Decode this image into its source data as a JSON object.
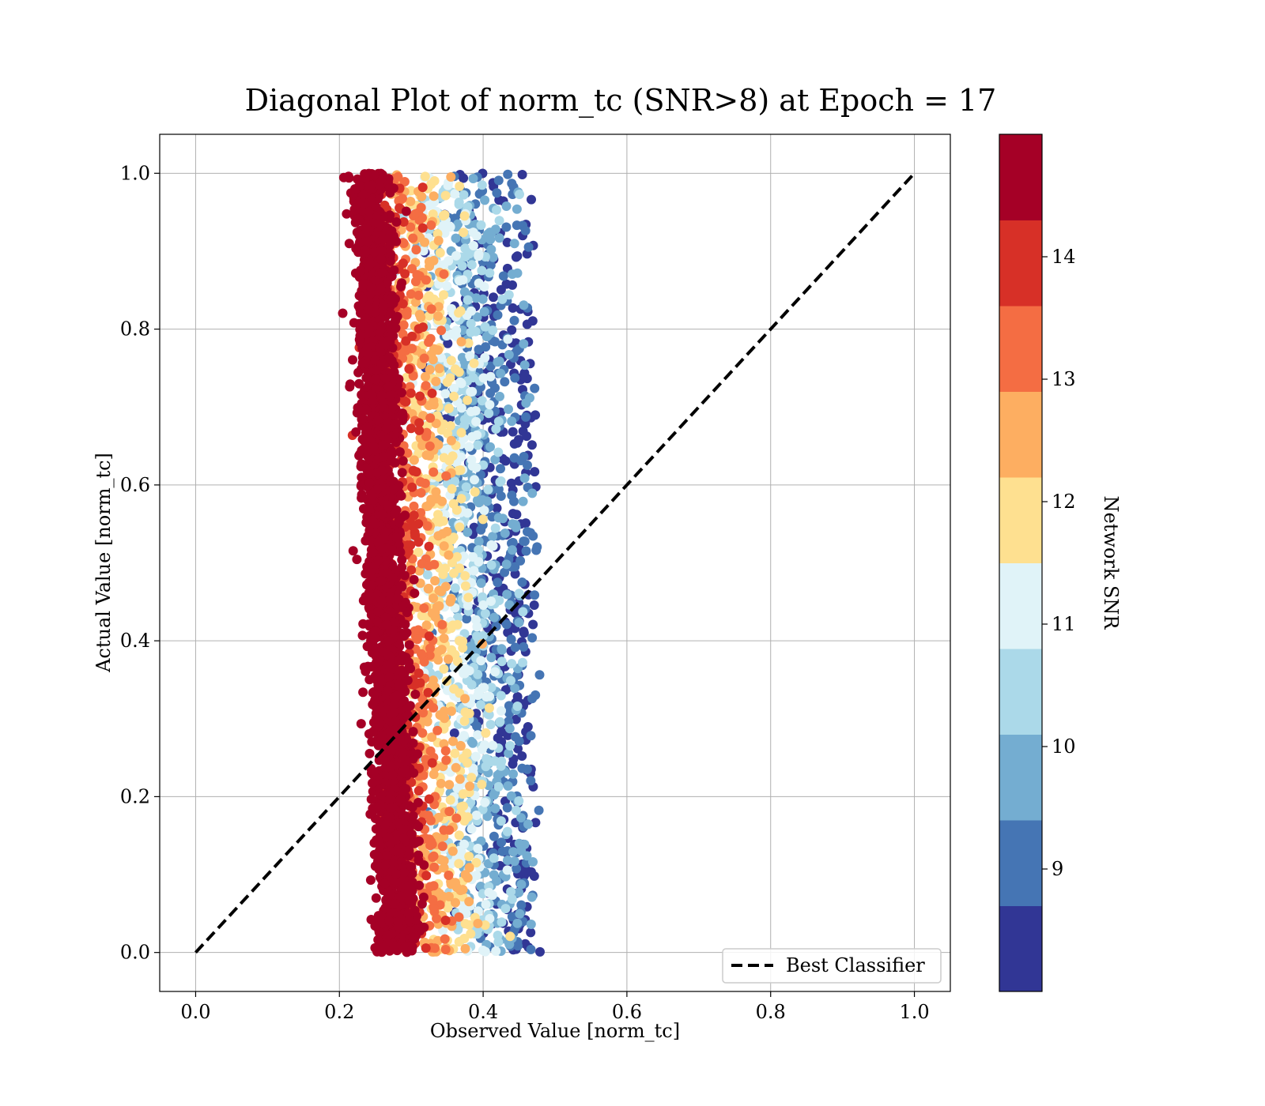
{
  "chart_data": {
    "type": "scatter",
    "title": "Diagonal Plot of norm_tc (SNR>8) at Epoch = 17",
    "xlabel": "Observed Value [norm_tc]",
    "ylabel": "Actual Value [norm_tc]",
    "xlim": [
      -0.05,
      1.05
    ],
    "ylim": [
      -0.05,
      1.05
    ],
    "xticks": [
      "0.0",
      "0.2",
      "0.4",
      "0.6",
      "0.8",
      "1.0"
    ],
    "yticks": [
      "0.0",
      "0.2",
      "0.4",
      "0.6",
      "0.8",
      "1.0"
    ],
    "grid": true,
    "legend": {
      "placement": "lower-right",
      "entries": [
        {
          "label": "Best Classifier",
          "style": "dashed",
          "color": "#000000"
        }
      ]
    },
    "reference_line": {
      "label": "Best Classifier",
      "x": [
        0.0,
        1.0
      ],
      "y": [
        0.0,
        1.0
      ]
    },
    "colorbar": {
      "label": "Network SNR",
      "min": 8.0,
      "max": 15.0,
      "ticks": [
        "9",
        "10",
        "11",
        "12",
        "13",
        "14"
      ],
      "tick_values": [
        9,
        10,
        11,
        12,
        13,
        14
      ],
      "colors": [
        "#313695",
        "#4575b4",
        "#74add1",
        "#abd9e9",
        "#e0f3f8",
        "#fee090",
        "#fdae61",
        "#f46d43",
        "#d73027",
        "#a50026"
      ]
    },
    "points_description": {
      "x_range": [
        0.2,
        0.49
      ],
      "y_range": [
        0.0,
        1.0
      ],
      "trend": "high-SNR points cluster near x≈0.22–0.28, lower-SNR points spread toward x≈0.35–0.47"
    }
  }
}
